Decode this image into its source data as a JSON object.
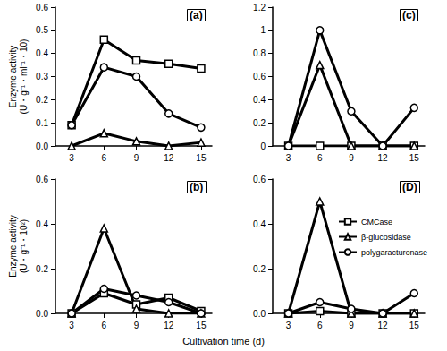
{
  "chart_data": [
    {
      "type": "line",
      "title": "(a)",
      "y_label": "Enzyme activity\n(U・g⁻¹・ml⁻¹・10)",
      "x": [
        3,
        6,
        9,
        12,
        15
      ],
      "xlim": [
        1.5,
        16
      ],
      "xticks": [
        3,
        6,
        9,
        12,
        15
      ],
      "ylim": [
        0,
        0.6
      ],
      "yticks": [
        {
          "value": 0,
          "label": "0.0"
        },
        {
          "value": 0.1,
          "label": "0.1"
        },
        {
          "value": 0.2,
          "label": "0.2"
        },
        {
          "value": 0.3,
          "label": "0.3"
        },
        {
          "value": 0.4,
          "label": "0.4"
        },
        {
          "value": 0.5,
          "label": "0.5"
        },
        {
          "value": 0.6,
          "label": "0.6"
        }
      ],
      "grid": false,
      "series": [
        {
          "name": "CMCase",
          "color": "#000000",
          "marker": "square",
          "line_style": "solid",
          "values": [
            0.09,
            0.46,
            0.37,
            0.355,
            0.335
          ]
        },
        {
          "name": "β-glucosidase",
          "color": "#000000",
          "marker": "triangle",
          "line_style": "solid",
          "values": [
            0,
            0.055,
            0.02,
            0,
            0.015
          ]
        },
        {
          "name": "polygaracturonase",
          "color": "#000000",
          "marker": "circle",
          "line_style": "solid",
          "values": [
            0.09,
            0.34,
            0.3,
            0.14,
            0.08
          ]
        }
      ]
    },
    {
      "type": "line",
      "title": "(c)",
      "x": [
        3,
        6,
        9,
        12,
        15
      ],
      "xlim": [
        1.5,
        16
      ],
      "xticks": [
        3,
        6,
        9,
        12,
        15
      ],
      "ylim": [
        0,
        1.2
      ],
      "yticks": [
        0,
        0.2,
        0.4,
        0.6,
        0.8,
        1,
        1.2
      ],
      "grid": false,
      "series": [
        {
          "name": "CMCase",
          "color": "#000000",
          "marker": "square",
          "line_style": "solid",
          "values": [
            0,
            0,
            0,
            0,
            0
          ]
        },
        {
          "name": "β-glucosidase",
          "color": "#000000",
          "marker": "triangle",
          "line_style": "solid",
          "values": [
            0,
            0.7,
            0,
            0,
            0
          ]
        },
        {
          "name": "polygaracturonase",
          "color": "#000000",
          "marker": "circle",
          "line_style": "solid",
          "values": [
            0,
            1.0,
            0.3,
            0,
            0.33
          ]
        }
      ]
    },
    {
      "type": "line",
      "title": "(b)",
      "y_label": "Enzyme activity\n(U・g⁻¹・10²)",
      "x_label": "Cultivation time (d)",
      "x": [
        3,
        6,
        9,
        12,
        15
      ],
      "xlim": [
        1.5,
        16
      ],
      "xticks": [
        3,
        6,
        9,
        12,
        15
      ],
      "ylim": [
        0,
        0.6
      ],
      "yticks": [
        {
          "value": 0,
          "label": "0.0"
        },
        {
          "value": 0.2,
          "label": "0.2"
        },
        {
          "value": 0.4,
          "label": "0.4"
        },
        {
          "value": 0.6,
          "label": "0.6"
        }
      ],
      "grid": false,
      "series": [
        {
          "name": "CMCase",
          "color": "#000000",
          "marker": "square",
          "line_style": "solid",
          "values": [
            0,
            0.09,
            0.04,
            0.07,
            0.01
          ]
        },
        {
          "name": "β-glucosidase",
          "color": "#000000",
          "marker": "triangle",
          "line_style": "solid",
          "values": [
            0,
            0.38,
            0.02,
            0,
            0
          ]
        },
        {
          "name": "polygaracturonase",
          "color": "#000000",
          "marker": "circle",
          "line_style": "solid",
          "values": [
            0,
            0.11,
            0.08,
            0.05,
            0
          ]
        }
      ]
    },
    {
      "type": "line",
      "title": "(D)",
      "x": [
        3,
        6,
        9,
        12,
        15
      ],
      "xlim": [
        1.5,
        16
      ],
      "xticks": [
        3,
        6,
        9,
        12,
        15
      ],
      "ylim": [
        0,
        0.6
      ],
      "yticks": [
        {
          "value": 0,
          "label": "0.0"
        },
        {
          "value": 0.2,
          "label": "0.2"
        },
        {
          "value": 0.4,
          "label": "0.4"
        },
        {
          "value": 0.6,
          "label": "0.6"
        }
      ],
      "grid": false,
      "legend": "right",
      "series": [
        {
          "name": "CMCase",
          "color": "#000000",
          "marker": "square",
          "line_style": "solid",
          "values": [
            0,
            0.01,
            0,
            0,
            0
          ]
        },
        {
          "name": "β-glucosidase",
          "color": "#000000",
          "marker": "triangle",
          "line_style": "solid",
          "values": [
            0,
            0.5,
            0,
            0,
            0
          ]
        },
        {
          "name": "polygaracturonase",
          "color": "#000000",
          "marker": "circle",
          "line_style": "solid",
          "values": [
            0,
            0.05,
            0.02,
            0,
            0.09
          ]
        }
      ]
    }
  ]
}
